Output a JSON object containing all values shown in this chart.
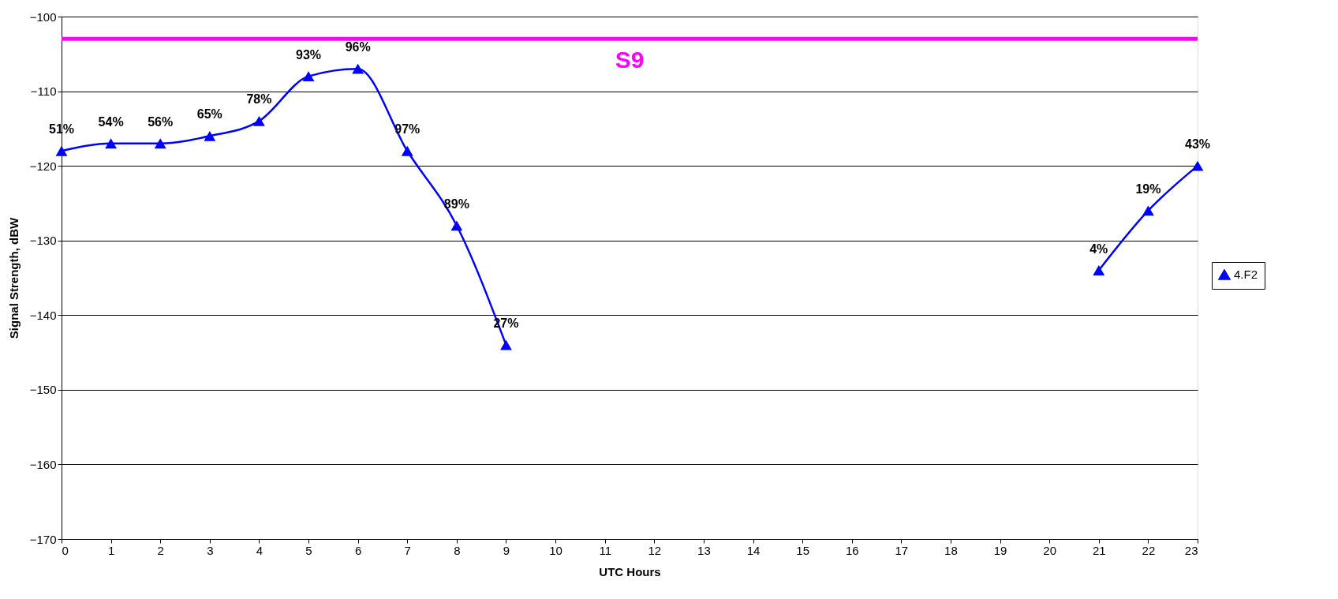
{
  "chart_data": {
    "type": "line",
    "xlabel": "UTC Hours",
    "ylabel": "Signal Strength, dBW",
    "x": [
      0,
      1,
      2,
      3,
      4,
      5,
      6,
      7,
      8,
      9,
      10,
      11,
      12,
      13,
      14,
      15,
      16,
      17,
      18,
      19,
      20,
      21,
      22,
      23
    ],
    "series": [
      {
        "name": "4.F2",
        "color": "#0000ff",
        "values": [
          -118,
          -117,
          -117,
          -116,
          -114,
          -108,
          -107,
          -118,
          -128,
          -144,
          null,
          null,
          null,
          null,
          null,
          null,
          null,
          null,
          null,
          null,
          null,
          -134,
          -126,
          -120
        ]
      }
    ],
    "annotations": [
      {
        "text": "51%",
        "x": 0,
        "y": -118
      },
      {
        "text": "54%",
        "x": 1,
        "y": -117
      },
      {
        "text": "56%",
        "x": 2,
        "y": -117
      },
      {
        "text": "65%",
        "x": 3,
        "y": -116
      },
      {
        "text": "78%",
        "x": 4,
        "y": -114
      },
      {
        "text": "93%",
        "x": 5,
        "y": -108
      },
      {
        "text": "96%",
        "x": 6,
        "y": -107
      },
      {
        "text": "97%",
        "x": 7,
        "y": -118
      },
      {
        "text": "89%",
        "x": 8,
        "y": -128
      },
      {
        "text": "27%",
        "x": 9,
        "y": -144
      },
      {
        "text": "4%",
        "x": 21,
        "y": -134
      },
      {
        "text": "19%",
        "x": 22,
        "y": -126
      },
      {
        "text": "43%",
        "x": 23,
        "y": -120
      }
    ],
    "xlim": [
      0,
      23
    ],
    "xticks": [
      0,
      1,
      2,
      3,
      4,
      5,
      6,
      7,
      8,
      9,
      10,
      11,
      12,
      13,
      14,
      15,
      16,
      17,
      18,
      19,
      20,
      21,
      22,
      23
    ],
    "ylim": [
      -170,
      -100
    ],
    "yticks": [
      -170,
      -160,
      -150,
      -140,
      -130,
      -120,
      -110,
      -100
    ],
    "ref_lines": [
      {
        "axis": "y",
        "value": -103,
        "label": "S9",
        "color": "#ff00ff"
      }
    ],
    "grid": "y",
    "legend": "right",
    "marker": "triangle",
    "line_style": "solid"
  }
}
